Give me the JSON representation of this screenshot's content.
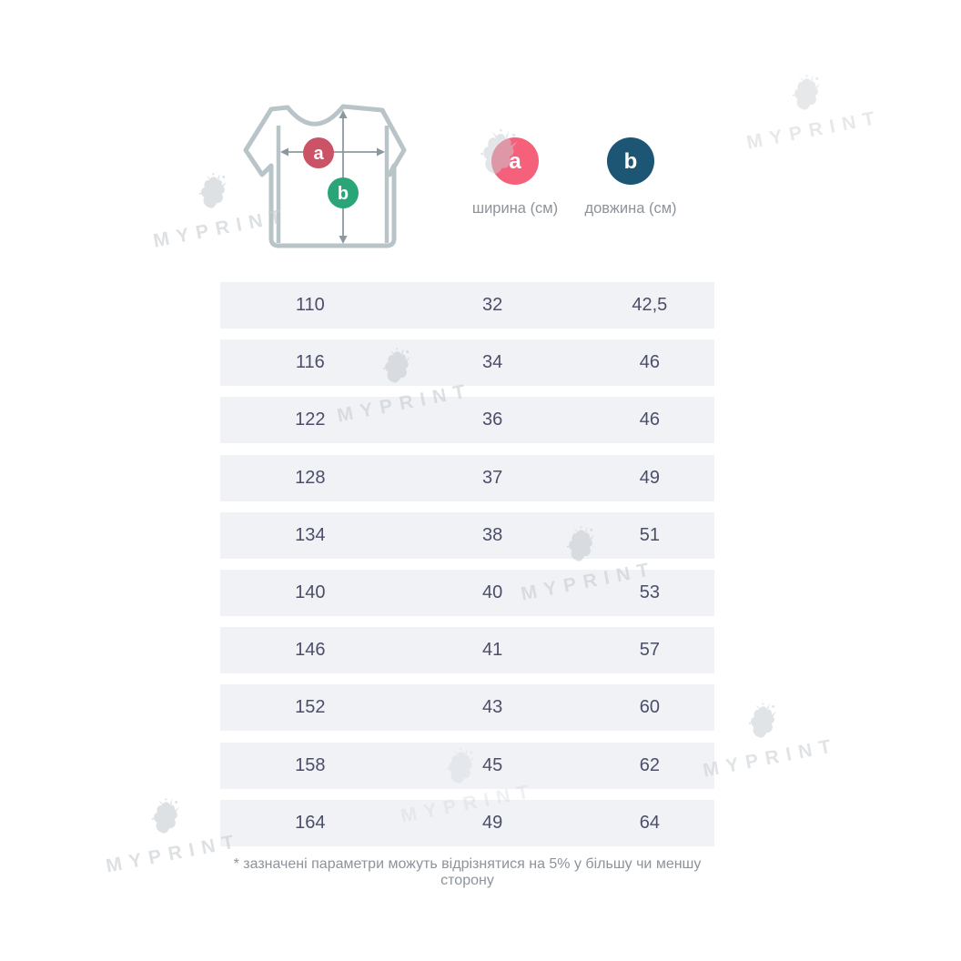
{
  "diagram": {
    "markers": [
      {
        "letter": "a",
        "label": "ширина (см)",
        "legend_color": "#f5617b",
        "shirt_color": "#cb5366"
      },
      {
        "letter": "b",
        "label": "довжина (см)",
        "legend_color": "#1d5674",
        "shirt_color": "#2aa578"
      }
    ]
  },
  "table": {
    "rows": [
      [
        "110",
        "32",
        "42,5"
      ],
      [
        "116",
        "34",
        "46"
      ],
      [
        "122",
        "36",
        "46"
      ],
      [
        "128",
        "37",
        "49"
      ],
      [
        "134",
        "38",
        "51"
      ],
      [
        "140",
        "40",
        "53"
      ],
      [
        "146",
        "41",
        "57"
      ],
      [
        "152",
        "43",
        "60"
      ],
      [
        "158",
        "45",
        "62"
      ],
      [
        "164",
        "49",
        "64"
      ]
    ]
  },
  "footnote": "* зазначені параметри можуть відрізнятися на 5% у більшу чи меншу сторону",
  "watermark": {
    "text": "MYPRINT"
  }
}
